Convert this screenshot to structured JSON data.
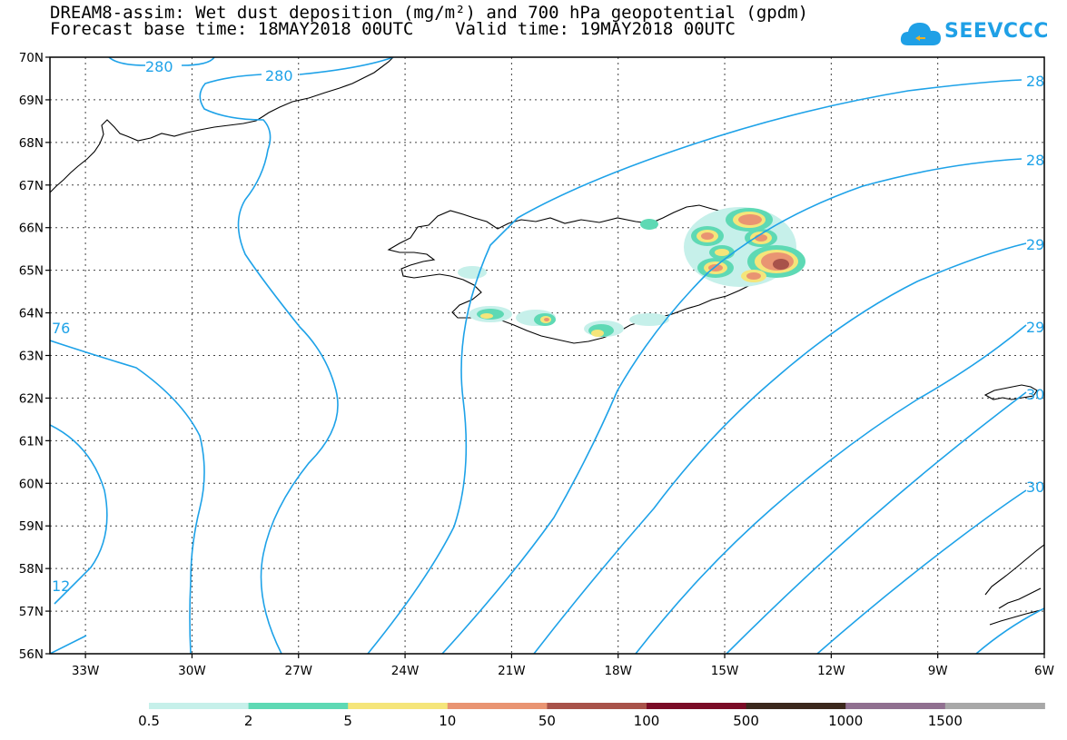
{
  "title": {
    "line1": "DREAM8-assim: Wet dust deposition (mg/m²) and 700 hPa geopotential (gpdm)",
    "line2": "Forecast base time: 18MAY2018 00UTC    Valid time: 19MAY2018 00UTC"
  },
  "logo": {
    "text": "SEEVCCC",
    "icon": "cloud-icon",
    "color": "#1fa0e6"
  },
  "map": {
    "lat_labels": [
      "70N",
      "69N",
      "68N",
      "67N",
      "66N",
      "65N",
      "64N",
      "63N",
      "62N",
      "61N",
      "60N",
      "59N",
      "58N",
      "57N",
      "56N"
    ],
    "lon_labels": [
      "33W",
      "30W",
      "27W",
      "24W",
      "21W",
      "18W",
      "15W",
      "12W",
      "9W",
      "6W"
    ],
    "contour_color": "#1ea2e8",
    "contour_labels": [
      "280",
      "280",
      "28",
      "28",
      "29",
      "29",
      "30",
      "30",
      "76",
      "12"
    ]
  },
  "legend": {
    "labels": [
      "0.5",
      "2",
      "5",
      "10",
      "50",
      "100",
      "500",
      "1000",
      "1500"
    ],
    "colors": [
      "#c6f0ea",
      "#5ed9b4",
      "#f5e57a",
      "#e99472",
      "#a8524a",
      "#7a0c26",
      "#3b281c",
      "#907090",
      "#a8a8a8"
    ]
  }
}
